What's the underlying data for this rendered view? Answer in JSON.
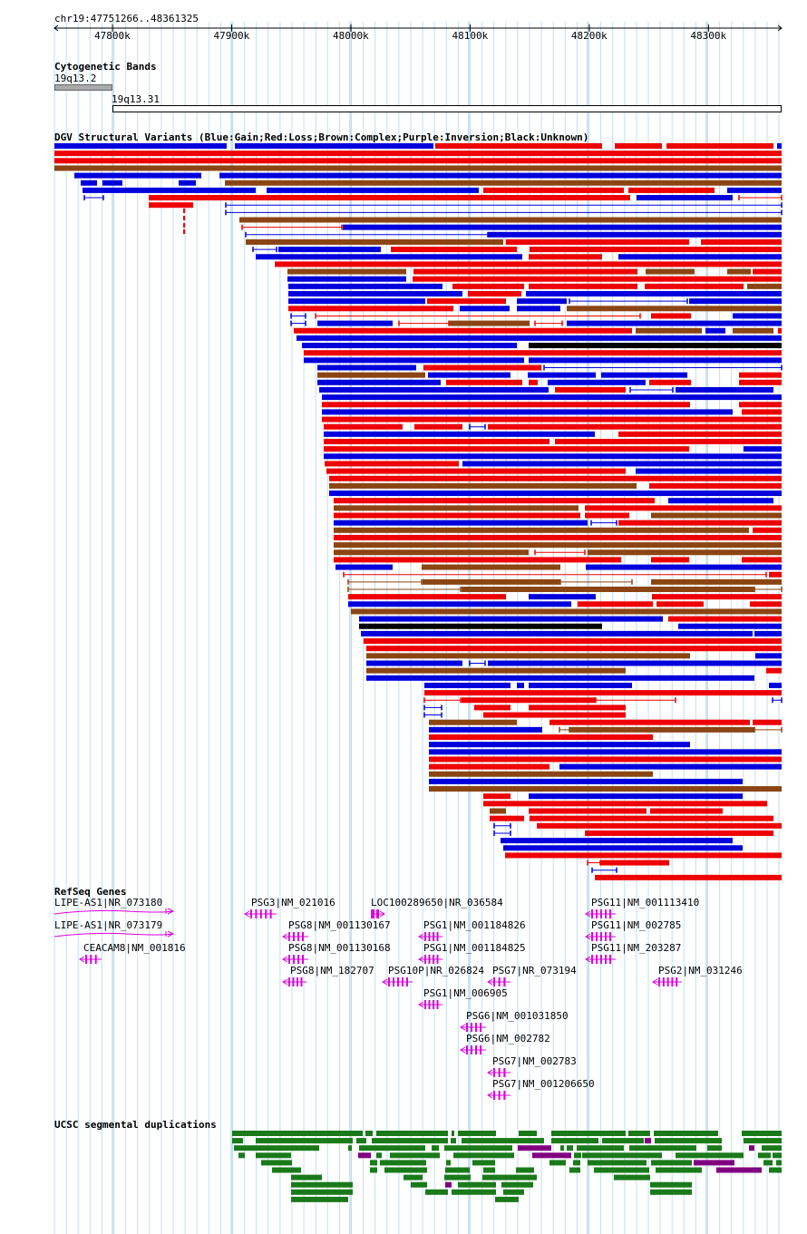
{
  "ruler": {
    "locus": "chr19:47751266..48361325",
    "ticks": [
      {
        "label": "47800k",
        "pos": 47800000
      },
      {
        "label": "47900k",
        "pos": 47900000
      },
      {
        "label": "48000k",
        "pos": 48000000
      },
      {
        "label": "48100k",
        "pos": 48100000
      },
      {
        "label": "48200k",
        "pos": 48200000
      },
      {
        "label": "48300k",
        "pos": 48300000
      }
    ]
  },
  "tracks": {
    "cytobands": {
      "title": "Cytogenetic Bands",
      "bands": [
        {
          "label": "19q13.2"
        },
        {
          "label": "19q13.31"
        }
      ]
    },
    "dgv": {
      "title": "DGV Structural Variants (Blue:Gain;Red:Loss;Brown:Complex;Purple:Inversion;Black:Unknown)",
      "colors": {
        "gain": "#0000dd",
        "loss": "#ee0000",
        "complex": "#8b4513",
        "inversion": "#800080",
        "unknown": "#000000"
      }
    },
    "refseq": {
      "title": "RefSeq Genes",
      "color": "#dd00dd",
      "genes": [
        {
          "label": "LIPE-AS1|NR_073180"
        },
        {
          "label": "LIPE-AS1|NR_073179"
        },
        {
          "label": "CEACAM8|NM_001816"
        },
        {
          "label": "PSG3|NM_021016"
        },
        {
          "label": "PSG8|NM_001130167"
        },
        {
          "label": "PSG8|NM_001130168"
        },
        {
          "label": "PSG8|NM_182707"
        },
        {
          "label": "LOC100289650|NR_036584"
        },
        {
          "label": "PSG10P|NR_026824"
        },
        {
          "label": "PSG1|NM_001184826"
        },
        {
          "label": "PSG1|NM_001184825"
        },
        {
          "label": "PSG1|NM_006905"
        },
        {
          "label": "PSG6|NM_001031850"
        },
        {
          "label": "PSG6|NM_002782"
        },
        {
          "label": "PSG7|NR_073194"
        },
        {
          "label": "PSG7|NM_002783"
        },
        {
          "label": "PSG7|NM_001206650"
        },
        {
          "label": "PSG11|NM_001113410"
        },
        {
          "label": "PSG11|NM_002785"
        },
        {
          "label": "PSG11|NM_203287"
        },
        {
          "label": "PSG2|NM_031246"
        }
      ]
    },
    "segdups": {
      "title": "UCSC segmental duplications",
      "colors": {
        "main": "#1a7a1a",
        "alt": "#800080"
      }
    }
  }
}
